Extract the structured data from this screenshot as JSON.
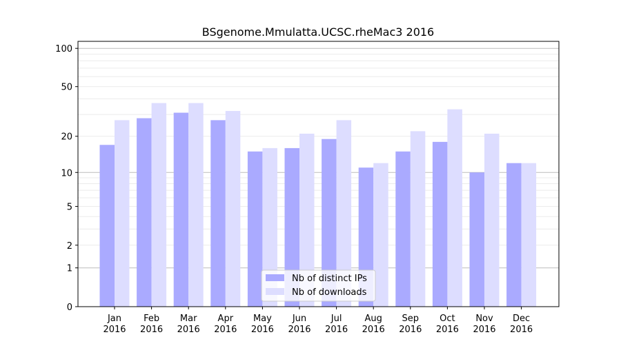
{
  "chart_data": {
    "type": "bar",
    "title": "BSgenome.Mmulatta.UCSC.rheMac3 2016",
    "xlabel": "",
    "ylabel": "",
    "yscale": "symlog",
    "ylim": [
      0,
      114
    ],
    "yticks": [
      0,
      1,
      2,
      5,
      10,
      20,
      50,
      100
    ],
    "grid": true,
    "legend_position": "lower-center",
    "categories": [
      "Jan\n2016",
      "Feb\n2016",
      "Mar\n2016",
      "Apr\n2016",
      "May\n2016",
      "Jun\n2016",
      "Jul\n2016",
      "Aug\n2016",
      "Sep\n2016",
      "Oct\n2016",
      "Nov\n2016",
      "Dec\n2016"
    ],
    "series": [
      {
        "name": "Nb of distinct IPs",
        "color": "#aaaaff",
        "values": [
          17,
          28,
          31,
          27,
          15,
          16,
          19,
          11,
          15,
          18,
          10,
          12
        ]
      },
      {
        "name": "Nb of downloads",
        "color": "#ddddff",
        "values": [
          27,
          37,
          37,
          32,
          16,
          21,
          27,
          12,
          22,
          33,
          21,
          12
        ]
      }
    ]
  }
}
